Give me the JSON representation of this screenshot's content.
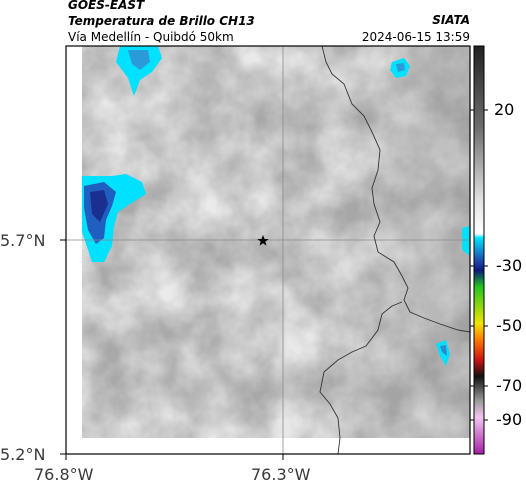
{
  "header": {
    "satellite": "GOES-EAST",
    "product": "Temperatura de Brillo CH13",
    "route": "Vía Medellín - Quibdó 50km",
    "agency": "SIATA",
    "timestamp": "2024-06-15 13:59"
  },
  "map": {
    "marker_icon": "star-icon",
    "y_ticks": [
      "5.7°N",
      "5.2°N"
    ],
    "x_ticks": [
      "76.8°W",
      "76.3°W"
    ]
  },
  "colorbar": {
    "ticks": [
      "20",
      "-30",
      "-50",
      "-70",
      "-90"
    ],
    "colors": {
      "warm": "#2a2a2a",
      "gray": "#bdbdbd",
      "white": "#ffffff",
      "cyan": "#00e6ff",
      "blue": "#1f3fa8",
      "green": "#22c41f",
      "yellow": "#f0e500",
      "orange": "#ff7a00",
      "red": "#c81414",
      "magenta": "#d64fd6"
    }
  }
}
